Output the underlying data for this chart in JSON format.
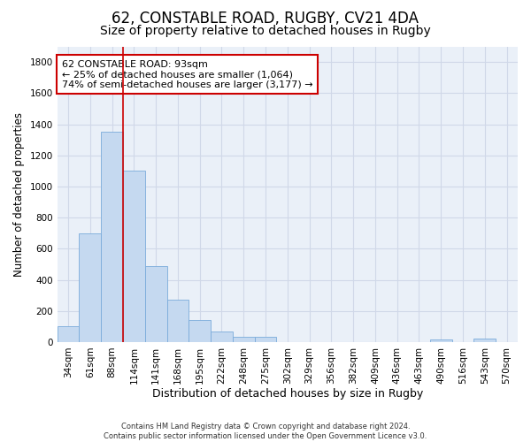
{
  "title": "62, CONSTABLE ROAD, RUGBY, CV21 4DA",
  "subtitle": "Size of property relative to detached houses in Rugby",
  "xlabel": "Distribution of detached houses by size in Rugby",
  "ylabel": "Number of detached properties",
  "footer_line1": "Contains HM Land Registry data © Crown copyright and database right 2024.",
  "footer_line2": "Contains public sector information licensed under the Open Government Licence v3.0.",
  "bar_labels": [
    "34sqm",
    "61sqm",
    "88sqm",
    "114sqm",
    "141sqm",
    "168sqm",
    "195sqm",
    "222sqm",
    "248sqm",
    "275sqm",
    "302sqm",
    "329sqm",
    "356sqm",
    "382sqm",
    "409sqm",
    "436sqm",
    "463sqm",
    "490sqm",
    "516sqm",
    "543sqm",
    "570sqm"
  ],
  "bar_values": [
    100,
    700,
    1350,
    1100,
    490,
    270,
    140,
    70,
    35,
    35,
    0,
    0,
    0,
    0,
    0,
    0,
    0,
    15,
    0,
    25,
    0
  ],
  "bar_color": "#c5d9f0",
  "bar_edge_color": "#7aabdb",
  "grid_color": "#d0d8e8",
  "bg_color": "#eaf0f8",
  "vline_x": 2.5,
  "vline_color": "#cc0000",
  "annotation_line1": "62 CONSTABLE ROAD: 93sqm",
  "annotation_line2": "← 25% of detached houses are smaller (1,064)",
  "annotation_line3": "74% of semi-detached houses are larger (3,177) →",
  "annotation_box_color": "#cc0000",
  "ylim": [
    0,
    1900
  ],
  "yticks": [
    0,
    200,
    400,
    600,
    800,
    1000,
    1200,
    1400,
    1600,
    1800
  ],
  "title_fontsize": 12,
  "subtitle_fontsize": 10,
  "xlabel_fontsize": 9,
  "ylabel_fontsize": 8.5,
  "tick_fontsize": 7.5,
  "annotation_fontsize": 8
}
